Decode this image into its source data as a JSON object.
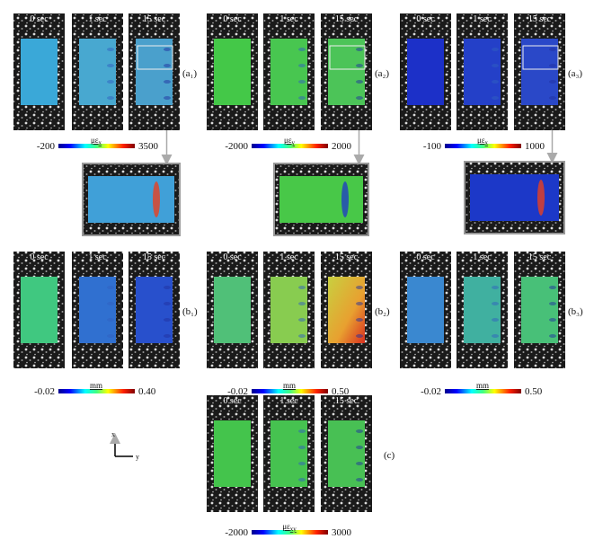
{
  "figure": {
    "groups": [
      {
        "label": "(a₁)",
        "times": [
          "0 sec",
          "1 sec",
          "15 sec"
        ],
        "colorbar": {
          "min": "-200",
          "unit": "με",
          "unit_sub": "x",
          "max": "3500"
        }
      },
      {
        "label": "(a₂)",
        "times": [
          "0 sec",
          "1 sec",
          "15 sec"
        ],
        "colorbar": {
          "min": "-2000",
          "unit": "με",
          "unit_sub": "y",
          "max": "2000"
        }
      },
      {
        "label": "(a₃)",
        "times": [
          "0 sec",
          "1 sec",
          "15 sec"
        ],
        "colorbar": {
          "min": "-100",
          "unit": "με",
          "unit_sub": "x",
          "max": "1000"
        }
      },
      {
        "label": "(b₁)",
        "times": [
          "0 sec",
          "1 sec",
          "15 sec"
        ],
        "colorbar": {
          "min": "-0.02",
          "unit": "mm",
          "max": "0.40"
        }
      },
      {
        "label": "(b₂)",
        "times": [
          "0 sec",
          "1 sec",
          "15 sec"
        ],
        "colorbar": {
          "min": "-0.02",
          "unit": "mm",
          "max": "0.50"
        }
      },
      {
        "label": "(b₃)",
        "times": [
          "0 sec",
          "1 sec",
          "15 sec"
        ],
        "colorbar": {
          "min": "-0.02",
          "unit": "mm",
          "max": "0.50"
        }
      },
      {
        "label": "(c)",
        "times": [
          "0 sec",
          "1 sec",
          "15 sec"
        ],
        "colorbar": {
          "min": "-2000",
          "unit": "με",
          "unit_sub": "xy",
          "max": "3000"
        }
      }
    ],
    "axes_icon": {
      "x": "x",
      "y": "y"
    }
  }
}
